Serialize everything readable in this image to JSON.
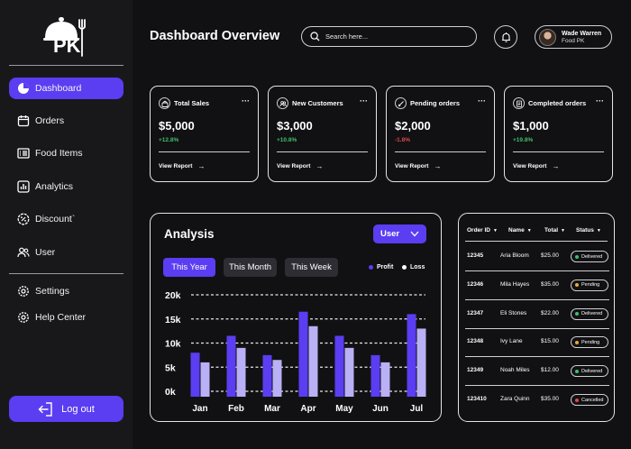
{
  "brand": {
    "logo_text": "PK"
  },
  "sidebar": {
    "items": [
      {
        "label": "Dashboard",
        "icon": "pie-chart-icon",
        "active": true
      },
      {
        "label": "Orders",
        "icon": "calendar-icon",
        "active": false
      },
      {
        "label": "Food Items",
        "icon": "list-icon",
        "active": false
      },
      {
        "label": "Analytics",
        "icon": "bar-chart-icon",
        "active": false
      },
      {
        "label": "Discount`",
        "icon": "discount-badge-icon",
        "active": false
      },
      {
        "label": "User",
        "icon": "users-icon",
        "active": false
      }
    ],
    "secondary_items": [
      {
        "label": "Settings",
        "icon": "gear-icon"
      },
      {
        "label": "Help Center",
        "icon": "help-gear-icon"
      }
    ],
    "logout_label": "Log out"
  },
  "header": {
    "title": "Dashboard Overview",
    "search_placeholder": "Search here...",
    "user_name": "Wade Warren",
    "user_role": "Food PK"
  },
  "stats": [
    {
      "title": "Total Sales",
      "icon": "bag-icon",
      "value": "$5,000",
      "change": "+12.8%",
      "change_color": "#3fbf6a",
      "link": "View Report"
    },
    {
      "title": "New Customers",
      "icon": "customers-icon",
      "value": "$3,000",
      "change": "+10.8%",
      "change_color": "#3fbf6a",
      "link": "View Report"
    },
    {
      "title": "Pending orders",
      "icon": "pending-icon",
      "value": "$2,000",
      "change": "-1.8%",
      "change_color": "#e04848",
      "link": "View Report"
    },
    {
      "title": "Completed orders",
      "icon": "clipboard-icon",
      "value": "$1,000",
      "change": "+19.8%",
      "change_color": "#3fbf6a",
      "link": "View Report"
    }
  ],
  "analysis": {
    "title": "Analysis",
    "select_value": "User",
    "chips": [
      "This Year",
      "This Month",
      "This Week"
    ],
    "active_chip": 0,
    "legend": [
      {
        "label": "Profit",
        "color": "#5b3df2"
      },
      {
        "label": "Loss",
        "color": "#ffffff"
      }
    ]
  },
  "chart_data": {
    "type": "bar",
    "categories": [
      "Jan",
      "Feb",
      "Mar",
      "Apr",
      "May",
      "Jun",
      "Jul"
    ],
    "series": [
      {
        "name": "Profit",
        "color": "#5b3df2",
        "values": [
          8,
          11.5,
          7.5,
          16.5,
          11.5,
          7.5,
          16
        ]
      },
      {
        "name": "Loss",
        "color": "#b9b0f5",
        "values": [
          6,
          9,
          6.5,
          13.5,
          9,
          6,
          13
        ]
      }
    ],
    "y_ticks": [
      "0k",
      "5k",
      "10k",
      "15k",
      "20k"
    ],
    "ylim": [
      0,
      20
    ],
    "grid": true
  },
  "orders": {
    "columns": [
      "Order ID",
      "Name",
      "Total",
      "Status"
    ],
    "rows": [
      {
        "id": "12345",
        "name": "Aria Bloom",
        "total": "$25.00",
        "status": "Delivered",
        "status_color": "#3fbf6a"
      },
      {
        "id": "12346",
        "name": "Mila Hayes",
        "total": "$35.00",
        "status": "Pending",
        "status_color": "#e8a93a"
      },
      {
        "id": "12347",
        "name": "Eli Stones",
        "total": "$22.00",
        "status": "Delivered",
        "status_color": "#3fbf6a"
      },
      {
        "id": "12348",
        "name": "Ivy Lane",
        "total": "$15.00",
        "status": "Pending",
        "status_color": "#e8a93a"
      },
      {
        "id": "12349",
        "name": "Noah Miles",
        "total": "$12.00",
        "status": "Delivered",
        "status_color": "#3fbf6a"
      },
      {
        "id": "123410",
        "name": "Zara Quinn",
        "total": "$35.00",
        "status": "Cancelled",
        "status_color": "#e04848"
      }
    ]
  },
  "colors": {
    "accent": "#5b3df2",
    "background": "#111113",
    "sidebar": "#18181b"
  }
}
